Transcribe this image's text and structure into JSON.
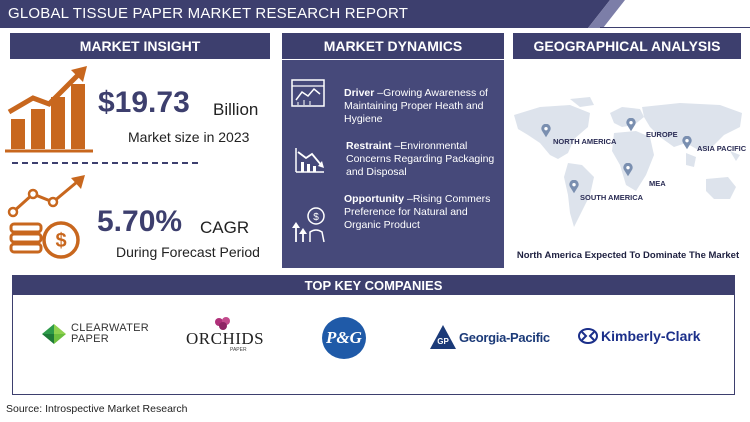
{
  "title": "GLOBAL TISSUE PAPER MARKET RESEARCH  REPORT",
  "insight": {
    "header": "MARKET INSIGHT",
    "market_value": "$19.73",
    "market_unit": "Billion",
    "market_caption": "Market size in 2023",
    "cagr_value": "5.70%",
    "cagr_label": "CAGR",
    "cagr_caption": "During Forecast Period"
  },
  "dynamics": {
    "header": "MARKET DYNAMICS",
    "items": [
      {
        "label": "Driver",
        "text": " –Growing Awareness of Maintaining Proper Heath and Hygiene",
        "icon": "chart-analytics-icon"
      },
      {
        "label": "Restraint",
        "text": " –Environmental Concerns Regarding Packaging and Disposal",
        "icon": "declining-chart-icon"
      },
      {
        "label": "Opportunity",
        "text": " –Rising Commers Preference for Natural and Organic Product",
        "icon": "growth-hand-icon"
      }
    ]
  },
  "geo": {
    "header": "GEOGRAPHICAL ANALYSIS",
    "regions": [
      "NORTH AMERICA",
      "EUROPE",
      "ASIA PACIFIC",
      "MEA",
      "SOUTH AMERICA"
    ],
    "caption": "North America Expected To Dominate The Market"
  },
  "companies": {
    "header": "TOP KEY COMPANIES",
    "clearwater_line1": "CLEARWATER",
    "clearwater_line2": "PAPER",
    "orchids_name": "ORCHIDS",
    "orchids_sub": "PAPER",
    "pg_name": "P&G",
    "gp_mark": "GP",
    "gp_name": "Georgia-Pacific",
    "kc_name": "Kimberly-Clark"
  },
  "source": "Source: Introspective Market Research",
  "colors": {
    "navy": "#3d3f6e",
    "orange": "#c8671e",
    "pin": "#7a8fb0"
  }
}
